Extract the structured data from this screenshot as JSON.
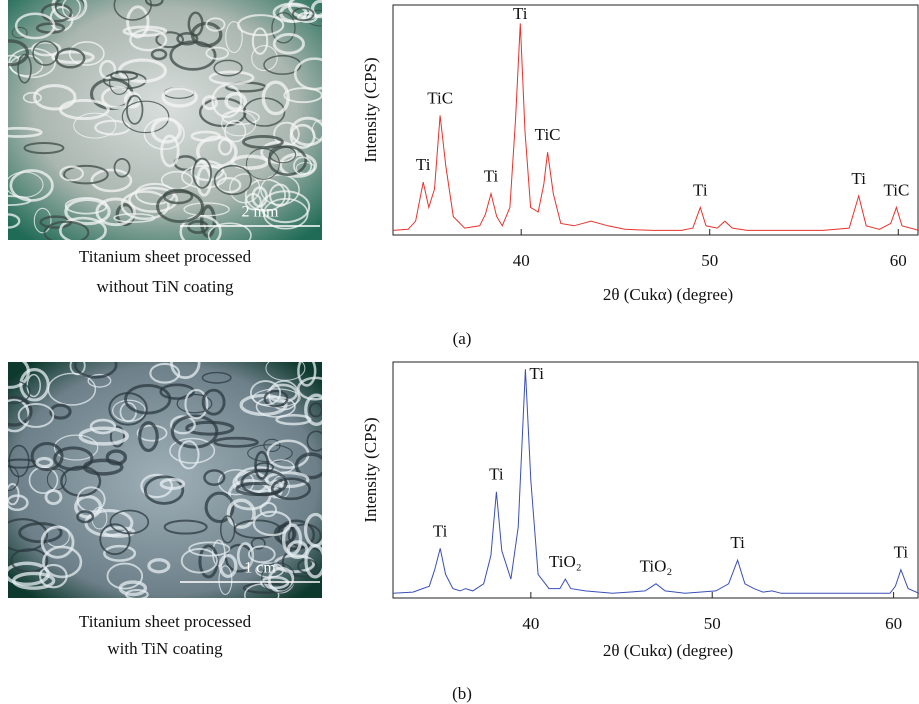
{
  "photos": [
    {
      "scale_bar": "2 mm",
      "caption": [
        "Titanium sheet processed",
        "without TiN coating"
      ]
    },
    {
      "scale_bar": "1 cm",
      "caption": [
        "Titanium sheet processed",
        "with TiN coating"
      ]
    }
  ],
  "chart_data": [
    {
      "type": "line",
      "label": "(a)",
      "x_label": "2θ (Cukα) (degree)",
      "y_label": "Intensity (CPS)",
      "color": "#e8322c",
      "xlim": [
        33.2,
        61.1
      ],
      "xticks": [
        40,
        50,
        60
      ],
      "ylim": [
        0,
        100
      ],
      "x": [
        33.2,
        34.0,
        34.4,
        34.8,
        35.1,
        35.4,
        35.7,
        36.0,
        36.4,
        37.0,
        37.8,
        38.1,
        38.4,
        38.7,
        39.0,
        39.4,
        39.7,
        39.95,
        40.2,
        40.5,
        40.9,
        41.2,
        41.4,
        41.7,
        42.1,
        42.8,
        43.7,
        44.6,
        45.5,
        47,
        48.5,
        49.1,
        49.5,
        49.8,
        50.4,
        50.8,
        51.2,
        52,
        54,
        56,
        57.4,
        57.9,
        58.3,
        59,
        59.6,
        59.9,
        60.2,
        61.1
      ],
      "values": [
        2,
        2.5,
        6,
        23,
        12,
        20,
        52,
        30,
        8,
        3,
        4,
        9,
        18,
        8,
        4,
        12,
        50,
        92,
        45,
        12,
        10,
        22,
        36,
        18,
        5,
        4,
        6,
        4,
        2.5,
        2,
        2,
        3,
        12,
        4,
        3,
        6,
        3,
        2,
        2,
        2,
        3,
        17,
        4,
        2.5,
        5,
        12,
        4,
        2
      ],
      "annotations": [
        {
          "text": "Ti",
          "x": 34.8
        },
        {
          "text": "TiC",
          "x": 35.7
        },
        {
          "text": "Ti",
          "x": 38.4
        },
        {
          "text": "Ti",
          "x": 39.95
        },
        {
          "text": "TiC",
          "x": 41.4
        },
        {
          "text": "Ti",
          "x": 49.5
        },
        {
          "text": "Ti",
          "x": 57.9
        },
        {
          "text": "TiC",
          "x": 59.9
        }
      ]
    },
    {
      "type": "line",
      "label": "(b)",
      "x_label": "2θ (Cukα) (degree)",
      "y_label": "Intensity (CPS)",
      "color": "#3a4fb8",
      "xlim": [
        32.4,
        61.4
      ],
      "xticks": [
        40,
        50,
        60
      ],
      "ylim": [
        0,
        100
      ],
      "x": [
        32.4,
        33.5,
        34.4,
        34.7,
        35.0,
        35.3,
        35.7,
        36.1,
        36.4,
        36.8,
        37.4,
        37.8,
        38.1,
        38.4,
        38.9,
        39.3,
        39.7,
        40.0,
        40.4,
        41.0,
        41.6,
        41.9,
        42.2,
        43,
        44.5,
        46.3,
        46.9,
        47.4,
        48.5,
        50.2,
        50.9,
        51.4,
        51.8,
        52.3,
        52.8,
        53.3,
        53.8,
        55,
        57,
        58.8,
        59.3,
        59.8,
        60.1,
        60.4,
        60.8,
        61.4
      ],
      "values": [
        2,
        2.5,
        5,
        12,
        21,
        10,
        4,
        3,
        4,
        3,
        6,
        18,
        45,
        20,
        8,
        30,
        97,
        50,
        10,
        4,
        4,
        8,
        4,
        3,
        2,
        3,
        6,
        3,
        2,
        3,
        6,
        16,
        6,
        4,
        2.5,
        3,
        2,
        2,
        2,
        2,
        2,
        2,
        5,
        12,
        4,
        2
      ],
      "annotations": [
        {
          "text": "Ti",
          "x": 35.0
        },
        {
          "text": "Ti",
          "x": 38.1
        },
        {
          "text": "Ti",
          "x": 39.7
        },
        {
          "text": "TiO₂",
          "x": 41.9
        },
        {
          "text": "TiO₂",
          "x": 46.9
        },
        {
          "text": "Ti",
          "x": 51.4
        },
        {
          "text": "Ti",
          "x": 60.4
        }
      ]
    }
  ]
}
